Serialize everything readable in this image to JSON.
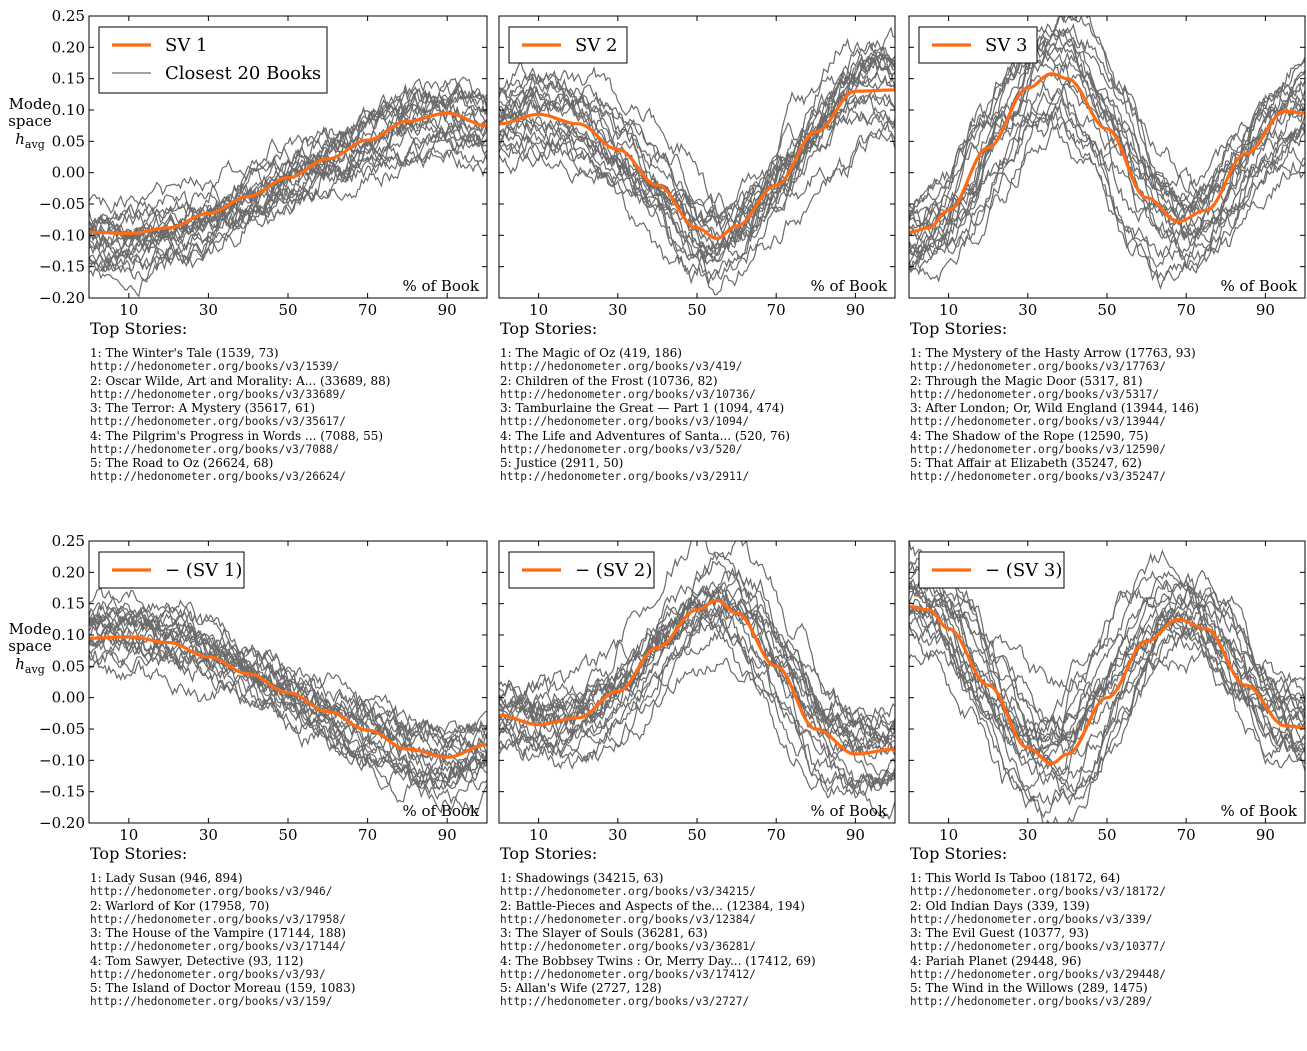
{
  "ylabel": [
    "Mode",
    "space"
  ],
  "ylabel_math": "h",
  "ylabel_sub": "avg",
  "top_stories_label": "Top Stories:",
  "colors": {
    "sv": "#ff6a13",
    "books": "#6b6b6b"
  },
  "chart_data": [
    {
      "type": "line",
      "xlabel": "% of Book",
      "xticks": [
        10,
        30,
        50,
        70,
        90
      ],
      "xlim": [
        0,
        100
      ],
      "ylim": [
        -0.2,
        0.25
      ],
      "yticks": [
        "0.25",
        "0.20",
        "0.15",
        "0.10",
        "0.05",
        "0.00",
        "−0.05",
        "−0.10",
        "−0.15",
        "−0.20"
      ],
      "legend": {
        "position": "top-left",
        "entries": [
          "SV 1",
          "Closest 20 Books"
        ]
      },
      "series": [
        {
          "name": "SV 1",
          "x": [
            0,
            10,
            20,
            30,
            40,
            50,
            60,
            70,
            80,
            90,
            100
          ],
          "values": [
            -0.095,
            -0.097,
            -0.088,
            -0.065,
            -0.038,
            -0.008,
            0.022,
            0.052,
            0.082,
            0.095,
            0.075
          ]
        }
      ],
      "books": {
        "name": "Closest 20 Books",
        "count": 20,
        "spread": 0.035
      },
      "stories": [
        {
          "title": "1: The Winter's Tale (1539, 73)",
          "url": "http://hedonometer.org/books/v3/1539/"
        },
        {
          "title": "2: Oscar Wilde, Art and Morality: A... (33689, 88)",
          "url": "http://hedonometer.org/books/v3/33689/"
        },
        {
          "title": "3: The Terror: A Mystery (35617, 61)",
          "url": "http://hedonometer.org/books/v3/35617/"
        },
        {
          "title": "4: The Pilgrim's Progress in Words ... (7088, 55)",
          "url": "http://hedonometer.org/books/v3/7088/"
        },
        {
          "title": "5: The Road to Oz (26624, 68)",
          "url": "http://hedonometer.org/books/v3/26624/"
        }
      ]
    },
    {
      "type": "line",
      "xlabel": "% of Book",
      "xticks": [
        10,
        30,
        50,
        70,
        90
      ],
      "xlim": [
        0,
        100
      ],
      "ylim": [
        -0.2,
        0.25
      ],
      "legend": {
        "position": "top-left",
        "entries": [
          "SV 2"
        ]
      },
      "series": [
        {
          "name": "SV 2",
          "x": [
            0,
            10,
            20,
            30,
            40,
            50,
            55,
            60,
            70,
            80,
            90,
            100
          ],
          "values": [
            0.078,
            0.093,
            0.078,
            0.037,
            -0.02,
            -0.088,
            -0.105,
            -0.085,
            -0.02,
            0.065,
            0.13,
            0.132
          ]
        }
      ],
      "books": {
        "name": "Closest 20 Books",
        "count": 20,
        "spread": 0.04
      },
      "stories": [
        {
          "title": "1: The Magic of Oz (419, 186)",
          "url": "http://hedonometer.org/books/v3/419/"
        },
        {
          "title": "2: Children of the Frost (10736, 82)",
          "url": "http://hedonometer.org/books/v3/10736/"
        },
        {
          "title": "3: Tamburlaine the Great — Part 1 (1094, 474)",
          "url": "http://hedonometer.org/books/v3/1094/"
        },
        {
          "title": "4: The Life and Adventures of Santa... (520, 76)",
          "url": "http://hedonometer.org/books/v3/520/"
        },
        {
          "title": "5: Justice (2911, 50)",
          "url": "http://hedonometer.org/books/v3/2911/"
        }
      ]
    },
    {
      "type": "line",
      "xlabel": "% of Book",
      "xticks": [
        10,
        30,
        50,
        70,
        90
      ],
      "xlim": [
        0,
        100
      ],
      "ylim": [
        -0.2,
        0.25
      ],
      "legend": {
        "position": "top-left",
        "entries": [
          "SV 3"
        ]
      },
      "series": [
        {
          "name": "SV 3",
          "x": [
            0,
            5,
            10,
            20,
            30,
            36,
            40,
            50,
            60,
            68,
            75,
            85,
            95,
            100
          ],
          "values": [
            -0.095,
            -0.088,
            -0.06,
            0.04,
            0.135,
            0.158,
            0.15,
            0.07,
            -0.04,
            -0.078,
            -0.06,
            0.03,
            0.098,
            0.095
          ]
        }
      ],
      "books": {
        "name": "Closest 20 Books",
        "count": 20,
        "spread": 0.055
      },
      "stories": [
        {
          "title": "1: The Mystery of the Hasty Arrow (17763, 93)",
          "url": "http://hedonometer.org/books/v3/17763/"
        },
        {
          "title": "2: Through the Magic Door (5317, 81)",
          "url": "http://hedonometer.org/books/v3/5317/"
        },
        {
          "title": "3: After London; Or, Wild England (13944, 146)",
          "url": "http://hedonometer.org/books/v3/13944/"
        },
        {
          "title": "4: The Shadow of the Rope (12590, 75)",
          "url": "http://hedonometer.org/books/v3/12590/"
        },
        {
          "title": "5: That Affair at Elizabeth (35247, 62)",
          "url": "http://hedonometer.org/books/v3/35247/"
        }
      ]
    },
    {
      "type": "line",
      "xlabel": "% of Book",
      "xticks": [
        10,
        30,
        50,
        70,
        90
      ],
      "xlim": [
        0,
        100
      ],
      "ylim": [
        -0.2,
        0.25
      ],
      "yticks": [
        "0.25",
        "0.20",
        "0.15",
        "0.10",
        "0.05",
        "0.00",
        "−0.05",
        "−0.10",
        "−0.15",
        "−0.20"
      ],
      "legend": {
        "position": "top-left",
        "entries": [
          "− (SV 1)"
        ]
      },
      "series": [
        {
          "name": "− (SV 1)",
          "x": [
            0,
            10,
            20,
            30,
            40,
            50,
            60,
            70,
            80,
            90,
            100
          ],
          "values": [
            0.095,
            0.097,
            0.088,
            0.065,
            0.038,
            0.008,
            -0.022,
            -0.052,
            -0.082,
            -0.095,
            -0.075
          ]
        }
      ],
      "books": {
        "name": "Closest 20 Books",
        "count": 20,
        "spread": 0.03
      },
      "stories": [
        {
          "title": "1: Lady Susan (946, 894)",
          "url": "http://hedonometer.org/books/v3/946/"
        },
        {
          "title": "2: Warlord of Kor (17958, 70)",
          "url": "http://hedonometer.org/books/v3/17958/"
        },
        {
          "title": "3: The House of the Vampire (17144, 188)",
          "url": "http://hedonometer.org/books/v3/17144/"
        },
        {
          "title": "4: Tom Sawyer, Detective (93, 112)",
          "url": "http://hedonometer.org/books/v3/93/"
        },
        {
          "title": "5: The Island of Doctor Moreau (159, 1083)",
          "url": "http://hedonometer.org/books/v3/159/"
        }
      ]
    },
    {
      "type": "line",
      "xlabel": "% of Book",
      "xticks": [
        10,
        30,
        50,
        70,
        90
      ],
      "xlim": [
        0,
        100
      ],
      "ylim": [
        -0.2,
        0.25
      ],
      "legend": {
        "position": "top-left",
        "entries": [
          "− (SV 2)"
        ]
      },
      "series": [
        {
          "name": "− (SV 2)",
          "x": [
            0,
            10,
            20,
            30,
            40,
            50,
            55,
            60,
            70,
            80,
            90,
            100
          ],
          "values": [
            -0.028,
            -0.043,
            -0.032,
            0.01,
            0.08,
            0.14,
            0.155,
            0.135,
            0.05,
            -0.05,
            -0.09,
            -0.082
          ]
        }
      ],
      "books": {
        "name": "Closest 20 Books",
        "count": 20,
        "spread": 0.045
      },
      "stories": [
        {
          "title": "1: Shadowings (34215, 63)",
          "url": "http://hedonometer.org/books/v3/34215/"
        },
        {
          "title": "2: Battle-Pieces and Aspects of the... (12384, 194)",
          "url": "http://hedonometer.org/books/v3/12384/"
        },
        {
          "title": "3: The Slayer of Souls (36281, 63)",
          "url": "http://hedonometer.org/books/v3/36281/"
        },
        {
          "title": "4: The Bobbsey Twins : Or, Merry Day... (17412, 69)",
          "url": "http://hedonometer.org/books/v3/17412/"
        },
        {
          "title": "5: Allan's Wife (2727, 128)",
          "url": "http://hedonometer.org/books/v3/2727/"
        }
      ]
    },
    {
      "type": "line",
      "xlabel": "% of Book",
      "xticks": [
        10,
        30,
        50,
        70,
        90
      ],
      "xlim": [
        0,
        100
      ],
      "ylim": [
        -0.2,
        0.25
      ],
      "legend": {
        "position": "top-left",
        "entries": [
          "− (SV 3)"
        ]
      },
      "series": [
        {
          "name": "− (SV 3)",
          "x": [
            0,
            5,
            10,
            20,
            30,
            36,
            40,
            50,
            60,
            68,
            75,
            85,
            95,
            100
          ],
          "values": [
            0.145,
            0.14,
            0.11,
            0.02,
            -0.08,
            -0.105,
            -0.09,
            0.0,
            0.09,
            0.125,
            0.11,
            0.02,
            -0.045,
            -0.048
          ]
        }
      ],
      "books": {
        "name": "Closest 20 Books",
        "count": 20,
        "spread": 0.055
      },
      "stories": [
        {
          "title": "1: This World Is Taboo (18172, 64)",
          "url": "http://hedonometer.org/books/v3/18172/"
        },
        {
          "title": "2: Old Indian Days (339, 139)",
          "url": "http://hedonometer.org/books/v3/339/"
        },
        {
          "title": "3: The Evil Guest (10377, 93)",
          "url": "http://hedonometer.org/books/v3/10377/"
        },
        {
          "title": "4: Pariah Planet (29448, 96)",
          "url": "http://hedonometer.org/books/v3/29448/"
        },
        {
          "title": "5: The Wind in the Willows (289, 1475)",
          "url": "http://hedonometer.org/books/v3/289/"
        }
      ]
    }
  ]
}
